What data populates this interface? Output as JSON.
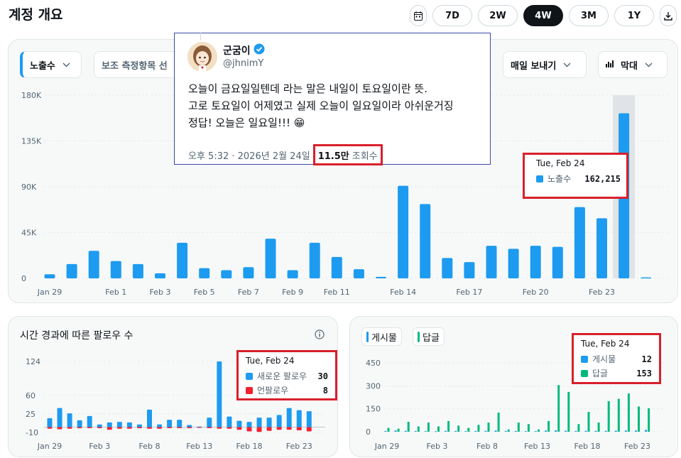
{
  "header": {
    "title": "계정 개요",
    "ranges": [
      "7D",
      "2W",
      "4W",
      "3M",
      "1Y"
    ],
    "active_range": "4W"
  },
  "main_chart": {
    "metric_label": "노출수",
    "secondary_label": "보조 측정항목 선",
    "export_label": "매일 보내기",
    "type_label": "막대",
    "bar_color": "#1d9bf0",
    "highlight_index": 26,
    "y_ticks": [
      "0",
      "45K",
      "90K",
      "135K",
      "180K"
    ],
    "x_ticks": [
      {
        "i": 0,
        "label": "Jan 29"
      },
      {
        "i": 3,
        "label": "Feb 1"
      },
      {
        "i": 5,
        "label": "Feb 3"
      },
      {
        "i": 7,
        "label": "Feb 5"
      },
      {
        "i": 9,
        "label": "Feb 7"
      },
      {
        "i": 11,
        "label": "Feb 9"
      },
      {
        "i": 13,
        "label": "Feb 11"
      },
      {
        "i": 16,
        "label": "Feb 14"
      },
      {
        "i": 19,
        "label": "Feb 17"
      },
      {
        "i": 22,
        "label": "Feb 20"
      },
      {
        "i": 25,
        "label": "Feb 23"
      }
    ],
    "tooltip": {
      "date": "Tue, Feb 24",
      "label": "노출수",
      "value": "162,215"
    }
  },
  "chart_data": [
    {
      "type": "bar",
      "ylim": [
        0,
        180000
      ],
      "categories": [
        "Jan 29",
        "Jan 30",
        "Jan 31",
        "Feb 1",
        "Feb 2",
        "Feb 3",
        "Feb 4",
        "Feb 5",
        "Feb 6",
        "Feb 7",
        "Feb 8",
        "Feb 9",
        "Feb 10",
        "Feb 11",
        "Feb 12",
        "Feb 13",
        "Feb 14",
        "Feb 15",
        "Feb 16",
        "Feb 17",
        "Feb 18",
        "Feb 19",
        "Feb 20",
        "Feb 21",
        "Feb 22",
        "Feb 23",
        "Feb 24",
        "Feb 25"
      ],
      "series": [
        {
          "name": "노출수",
          "values": [
            4000,
            14000,
            27000,
            17000,
            14000,
            5000,
            35000,
            10000,
            8000,
            11000,
            39000,
            8000,
            35000,
            21000,
            9000,
            1500,
            91000,
            73000,
            20000,
            16000,
            32000,
            29000,
            32000,
            31000,
            70000,
            59000,
            162215,
            1000
          ]
        }
      ]
    },
    {
      "type": "bar",
      "title": "시간 경과에 따른 팔로우 수",
      "ylim": [
        -10,
        124
      ],
      "categories": [
        "Jan 29",
        "Jan 30",
        "Jan 31",
        "Feb 1",
        "Feb 2",
        "Feb 3",
        "Feb 4",
        "Feb 5",
        "Feb 6",
        "Feb 7",
        "Feb 8",
        "Feb 9",
        "Feb 10",
        "Feb 11",
        "Feb 12",
        "Feb 13",
        "Feb 14",
        "Feb 15",
        "Feb 16",
        "Feb 17",
        "Feb 18",
        "Feb 19",
        "Feb 20",
        "Feb 21",
        "Feb 22",
        "Feb 23",
        "Feb 24"
      ],
      "series": [
        {
          "name": "새로운 팔로우",
          "values": [
            17,
            36,
            26,
            13,
            21,
            5,
            9,
            10,
            9,
            5,
            33,
            5,
            14,
            14,
            4,
            1,
            18,
            124,
            20,
            12,
            10,
            18,
            18,
            23,
            36,
            32,
            30
          ]
        },
        {
          "name": "언팔로우",
          "values": [
            3,
            4,
            3,
            2,
            2,
            2,
            5,
            3,
            3,
            2,
            3,
            3,
            2,
            2,
            2,
            1,
            2,
            3,
            3,
            5,
            8,
            9,
            7,
            5,
            5,
            6,
            8
          ]
        }
      ]
    },
    {
      "type": "bar",
      "ylim": [
        0,
        450
      ],
      "categories": [
        "Jan 29",
        "Jan 30",
        "Jan 31",
        "Feb 1",
        "Feb 2",
        "Feb 3",
        "Feb 4",
        "Feb 5",
        "Feb 6",
        "Feb 7",
        "Feb 8",
        "Feb 9",
        "Feb 10",
        "Feb 11",
        "Feb 12",
        "Feb 13",
        "Feb 14",
        "Feb 15",
        "Feb 16",
        "Feb 17",
        "Feb 18",
        "Feb 19",
        "Feb 20",
        "Feb 21",
        "Feb 22",
        "Feb 23",
        "Feb 24"
      ],
      "series": [
        {
          "name": "게시물",
          "values": [
            5,
            8,
            6,
            5,
            4,
            3,
            6,
            5,
            4,
            5,
            6,
            8,
            5,
            5,
            4,
            4,
            8,
            9,
            7,
            5,
            6,
            6,
            6,
            7,
            8,
            8,
            12
          ]
        },
        {
          "name": "답글",
          "values": [
            25,
            20,
            65,
            35,
            60,
            35,
            70,
            40,
            25,
            45,
            60,
            125,
            15,
            60,
            50,
            15,
            70,
            305,
            260,
            50,
            130,
            60,
            200,
            215,
            250,
            165,
            153
          ]
        }
      ]
    }
  ],
  "followers": {
    "title": "시간 경과에 따른 팔로우 수",
    "y_ticks": [
      "-10",
      "25",
      "60",
      "124"
    ],
    "x_ticks": [
      {
        "i": 0,
        "label": "Jan 29"
      },
      {
        "i": 5,
        "label": "Feb 3"
      },
      {
        "i": 10,
        "label": "Feb 8"
      },
      {
        "i": 15,
        "label": "Feb 13"
      },
      {
        "i": 20,
        "label": "Feb 18"
      },
      {
        "i": 25,
        "label": "Feb 23"
      }
    ],
    "pos_color": "#1d9bf0",
    "neg_color": "#f4212e",
    "tooltip": {
      "date": "Tue, Feb 24",
      "rows": [
        {
          "label": "새로운 팔로우",
          "value": "30",
          "color": "#1d9bf0"
        },
        {
          "label": "언팔로우",
          "value": "8",
          "color": "#f4212e"
        }
      ]
    }
  },
  "posts": {
    "legend": [
      {
        "label": "게시물",
        "color": "#1d9bf0"
      },
      {
        "label": "답글",
        "color": "#00ba7c"
      }
    ],
    "y_ticks": [
      "0",
      "150",
      "300",
      "450"
    ],
    "x_ticks": [
      {
        "i": 0,
        "label": "Jan 29"
      },
      {
        "i": 5,
        "label": "Feb 3"
      },
      {
        "i": 10,
        "label": "Feb 8"
      },
      {
        "i": 15,
        "label": "Feb 13"
      },
      {
        "i": 20,
        "label": "Feb 18"
      },
      {
        "i": 25,
        "label": "Feb 23"
      }
    ],
    "tooltip": {
      "date": "Tue, Feb 24",
      "rows": [
        {
          "label": "게시물",
          "value": "12",
          "color": "#1d9bf0"
        },
        {
          "label": "답글",
          "value": "153",
          "color": "#00ba7c"
        }
      ]
    }
  },
  "tweet": {
    "name": "군굼이",
    "handle": "@jhnimY",
    "body": [
      "오늘이 금요일일텐데 라는 말은 내일이 토요일이란 뜻.",
      "고로 토요일이 어제였고 실제 오늘이 일요일이라 아쉬운거징",
      "정답! 오늘은 일요일!!! 😁"
    ],
    "meta": "오후 5:32 · 2026년 2월 24일",
    "views_value": "11.5만",
    "views_label": "조회수",
    "verified_color": "#1d9bf0"
  }
}
